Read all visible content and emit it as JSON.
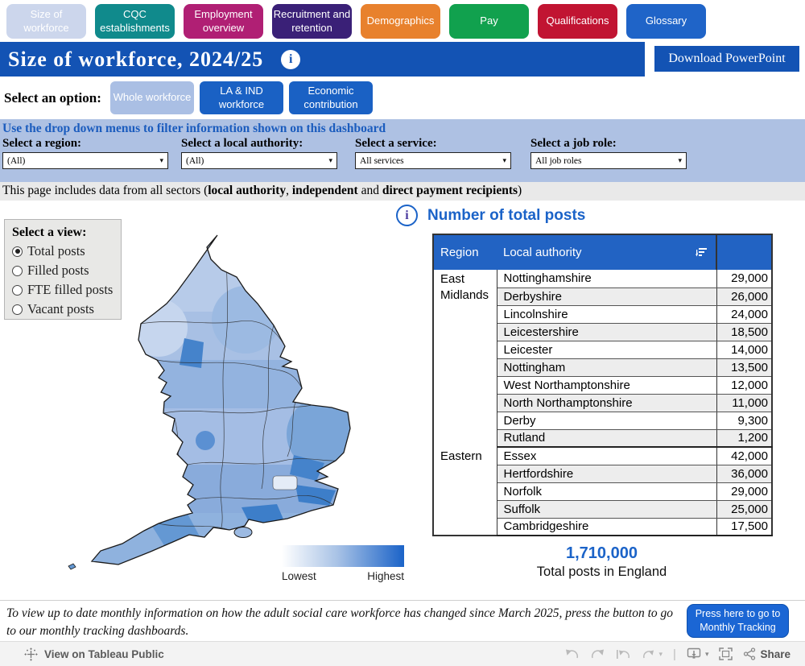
{
  "tabs": [
    {
      "label": "Size of workforce",
      "color": "#ccd6ec",
      "active": true
    },
    {
      "label": "CQC establishments",
      "color": "#108a8c",
      "active": false
    },
    {
      "label": "Employment overview",
      "color": "#b01f74",
      "active": false
    },
    {
      "label": "Recruitment and retention",
      "color": "#3a2077",
      "active": false
    },
    {
      "label": "Demographics",
      "color": "#e8812d",
      "active": false
    },
    {
      "label": "Pay",
      "color": "#11a14e",
      "active": false
    },
    {
      "label": "Qualifications",
      "color": "#c11432",
      "active": false
    },
    {
      "label": "Glossary",
      "color": "#1f64c8",
      "active": false
    }
  ],
  "header": {
    "title": "Size of workforce, 2024/25",
    "info_icon": "i",
    "download_label": "Download PowerPoint",
    "bar_color": "#1353b4"
  },
  "options": {
    "label": "Select an option:",
    "buttons": [
      {
        "label": "Whole workforce",
        "color": "#aabfe4",
        "active": true
      },
      {
        "label": "LA & IND workforce",
        "color": "#1a61c4",
        "active": false
      },
      {
        "label": "Economic contribution",
        "color": "#1a61c4",
        "active": false
      }
    ]
  },
  "filters": {
    "heading": "Use the drop down menus to filter information shown on this dashboard",
    "groups": [
      {
        "label": "Select a region:",
        "value": "(All)"
      },
      {
        "label": "Select a local authority:",
        "value": "(All)"
      },
      {
        "label": "Select a service:",
        "value": "All services"
      },
      {
        "label": "Select a job role:",
        "value": "All job roles"
      }
    ]
  },
  "note": {
    "parts": [
      {
        "text": "This page includes data from all sectors (",
        "bold": false
      },
      {
        "text": "local authority",
        "bold": true
      },
      {
        "text": ", ",
        "bold": false
      },
      {
        "text": "independent",
        "bold": true
      },
      {
        "text": " and ",
        "bold": false
      },
      {
        "text": "direct payment recipients",
        "bold": true
      },
      {
        "text": ")",
        "bold": false
      }
    ]
  },
  "view_selector": {
    "label": "Select a view:",
    "options": [
      {
        "label": "Total posts",
        "selected": true
      },
      {
        "label": "Filled posts",
        "selected": false
      },
      {
        "label": "FTE filled posts",
        "selected": false
      },
      {
        "label": "Vacant posts",
        "selected": false
      }
    ]
  },
  "map_legend": {
    "lowest": "Lowest",
    "highest": "Highest",
    "low_color": "#ffffff",
    "high_color": "#1b63c8"
  },
  "table": {
    "title": "Number of total posts",
    "columns": [
      "Region",
      "Local authority",
      ""
    ],
    "groups": [
      {
        "region": "East Midlands",
        "rows": [
          [
            "Nottinghamshire",
            "29,000"
          ],
          [
            "Derbyshire",
            "26,000"
          ],
          [
            "Lincolnshire",
            "24,000"
          ],
          [
            "Leicestershire",
            "18,500"
          ],
          [
            "Leicester",
            "14,000"
          ],
          [
            "Nottingham",
            "13,500"
          ],
          [
            "West Northamptonshire",
            "12,000"
          ],
          [
            "North Northamptonshire",
            "11,000"
          ],
          [
            "Derby",
            "9,300"
          ],
          [
            "Rutland",
            "1,200"
          ]
        ]
      },
      {
        "region": "Eastern",
        "rows": [
          [
            "Essex",
            "42,000"
          ],
          [
            "Hertfordshire",
            "36,000"
          ],
          [
            "Norfolk",
            "29,000"
          ],
          [
            "Suffolk",
            "25,000"
          ],
          [
            "Cambridgeshire",
            "17,500"
          ]
        ]
      }
    ]
  },
  "total": {
    "value": "1,710,000",
    "label": "Total posts in England"
  },
  "monthly": {
    "text": "To view up to date monthly information on how the adult social care workforce has changed since March 2025, press the button to go to our monthly tracking dashboards.",
    "button": "Press here to go to Monthly Tracking"
  },
  "toolbar": {
    "view_label": "View on Tableau Public",
    "share_label": "Share"
  }
}
